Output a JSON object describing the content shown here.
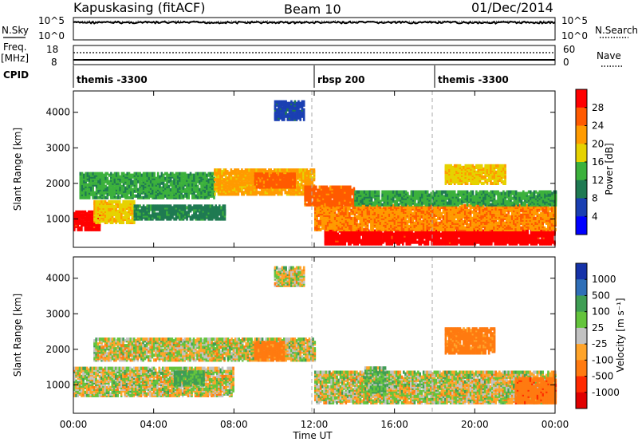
{
  "header": {
    "station": "Kapuskasing (fitACF)",
    "beam": "Beam 10",
    "date": "01/Dec/2014"
  },
  "nsky_panel": {
    "left_label": "N.Sky",
    "left_ticks": [
      "10^5",
      "10^0"
    ],
    "right_ticks": [
      "10^5",
      "10^0"
    ],
    "right_label": "N.Search"
  },
  "freq_panel": {
    "left_label_line1": "Freq.",
    "left_label_line2": "[MHz]",
    "left_ticks": [
      "18",
      "8"
    ],
    "right_ticks": [
      "60",
      "0"
    ],
    "right_label": "Nave"
  },
  "cpid_panel": {
    "label": "CPID",
    "segments": [
      {
        "start_hour": 0,
        "name": "themis -3300"
      },
      {
        "start_hour": 12,
        "name": "rbsp 200"
      },
      {
        "start_hour": 18,
        "name": "themis -3300"
      }
    ]
  },
  "power_panel": {
    "ylabel": "Slant Range [km]",
    "colorbar_label": "Power [dB]",
    "colorbar_ticks": [
      "28",
      "24",
      "20",
      "16",
      "12",
      "8",
      "4"
    ],
    "colorbar_colors": [
      "#ff0000",
      "#ff5a00",
      "#ff9b00",
      "#e6d200",
      "#3cb13c",
      "#1f7a52",
      "#1a3fb2",
      "#0000ff"
    ]
  },
  "velocity_panel": {
    "ylabel": "Slant Range [km]",
    "colorbar_label": "Velocity [m s⁻¹]",
    "colorbar_ticks": [
      "1000",
      "500",
      "100",
      "25",
      "-25",
      "-100",
      "-500",
      "-1000"
    ],
    "colorbar_colors": [
      "#1532a8",
      "#2f6fb8",
      "#3f9e54",
      "#64c43c",
      "#c2c2c2",
      "#ffa42a",
      "#ff7a10",
      "#ff2a00",
      "#e00000"
    ]
  },
  "axis": {
    "xlabel": "Time UT",
    "xticks": [
      "00:00",
      "04:00",
      "08:00",
      "12:00",
      "16:00",
      "20:00",
      "00:00"
    ],
    "yticks": [
      "1000",
      "2000",
      "3000",
      "4000"
    ]
  },
  "chart_data": {
    "type": "heatmap",
    "title": "Kapuskasing (fitACF)   Beam 10   01/Dec/2014",
    "xlabel": "Time UT",
    "ylabel": "Slant Range [km]",
    "xlim_hours": [
      0,
      24
    ],
    "ylim_km": [
      200,
      4600
    ],
    "panels": [
      {
        "name": "Power",
        "unit": "dB",
        "value_range": [
          0,
          30
        ],
        "regions": [
          {
            "t0": 0.0,
            "t1": 1.3,
            "r0": 700,
            "r1": 1200,
            "value": 28
          },
          {
            "t0": 1.0,
            "t1": 3.0,
            "r0": 900,
            "r1": 1500,
            "value": 18
          },
          {
            "t0": 0.3,
            "t1": 7.0,
            "r0": 1600,
            "r1": 2300,
            "value": 12
          },
          {
            "t0": 7.0,
            "t1": 12.0,
            "r0": 1700,
            "r1": 2400,
            "value": 20
          },
          {
            "t0": 3.0,
            "t1": 7.5,
            "r0": 1000,
            "r1": 1400,
            "value": 10
          },
          {
            "t0": 9.0,
            "t1": 11.0,
            "r0": 1900,
            "r1": 2300,
            "value": 24
          },
          {
            "t0": 12.5,
            "t1": 24.0,
            "r0": 300,
            "r1": 700,
            "value": 28
          },
          {
            "t0": 12.0,
            "t1": 24.0,
            "r0": 700,
            "r1": 1400,
            "value": 22
          },
          {
            "t0": 11.5,
            "t1": 14.0,
            "r0": 1400,
            "r1": 1900,
            "value": 24
          },
          {
            "t0": 14.0,
            "t1": 24.0,
            "r0": 1400,
            "r1": 1800,
            "value": 12
          },
          {
            "t0": 18.5,
            "t1": 21.5,
            "r0": 2000,
            "r1": 2500,
            "value": 18
          },
          {
            "t0": 10.0,
            "t1": 11.5,
            "r0": 3800,
            "r1": 4300,
            "value": 6
          }
        ]
      },
      {
        "name": "Velocity",
        "unit": "m s-1",
        "value_range": [
          -1000,
          1000
        ],
        "regions": [
          {
            "t0": 0.0,
            "t1": 8.0,
            "r0": 700,
            "r1": 1500,
            "value": 0
          },
          {
            "t0": 1.0,
            "t1": 12.0,
            "r0": 1700,
            "r1": 2300,
            "value": 0
          },
          {
            "t0": 9.0,
            "t1": 10.5,
            "r0": 1700,
            "r1": 2200,
            "value": -200
          },
          {
            "t0": 5.0,
            "t1": 6.5,
            "r0": 1000,
            "r1": 1400,
            "value": 150
          },
          {
            "t0": 12.0,
            "t1": 24.0,
            "r0": 500,
            "r1": 1400,
            "value": 0
          },
          {
            "t0": 18.5,
            "t1": 21.0,
            "r0": 1900,
            "r1": 2600,
            "value": -200
          },
          {
            "t0": 22.0,
            "t1": 24.0,
            "r0": 500,
            "r1": 1200,
            "value": -400
          },
          {
            "t0": 14.5,
            "t1": 15.5,
            "r0": 800,
            "r1": 1500,
            "value": 80
          },
          {
            "t0": 10.0,
            "t1": 11.5,
            "r0": 3800,
            "r1": 4300,
            "value": 0
          }
        ]
      }
    ]
  }
}
